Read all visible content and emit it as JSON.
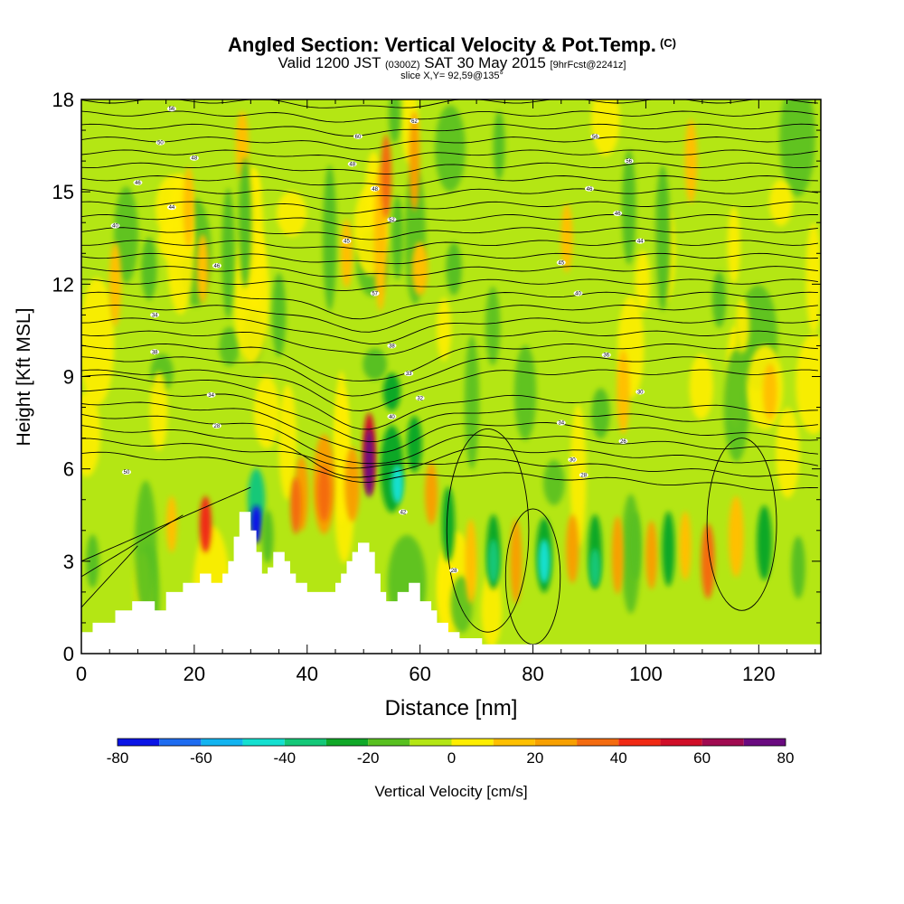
{
  "header": {
    "title": "Angled Section: Vertical Velocity & Pot.Temp.",
    "title_unit": "(C)",
    "valid_prefix": "Valid 1200 JST",
    "valid_zulu": "(0300Z)",
    "valid_date": "SAT 30 May 2015",
    "forecast": "[9hrFcst@2241z]",
    "slice": "slice X,Y= 92,59@135°"
  },
  "chart_data": {
    "type": "heatmap",
    "xlabel": "Distance [nm]",
    "ylabel": "Height [Kft MSL]",
    "xlim": [
      0,
      131
    ],
    "ylim": [
      0,
      18
    ],
    "x_ticks": [
      0,
      20,
      40,
      60,
      80,
      100,
      120
    ],
    "y_ticks": [
      0,
      3,
      6,
      9,
      12,
      15,
      18
    ],
    "colorbar": {
      "label": "Vertical Velocity [cm/s]",
      "ticks": [
        -80,
        -60,
        -40,
        -20,
        0,
        20,
        40,
        60,
        80
      ],
      "bins": [
        -80,
        -70,
        -60,
        -50,
        -40,
        -30,
        -20,
        -10,
        0,
        10,
        20,
        30,
        40,
        50,
        60,
        70,
        80
      ],
      "colors": [
        "#0a14e6",
        "#1e6cf0",
        "#12b4f0",
        "#14e0d0",
        "#14c878",
        "#10a828",
        "#58c020",
        "#b4e614",
        "#ffee00",
        "#ffc000",
        "#f7a000",
        "#f46c10",
        "#f02a14",
        "#d00e28",
        "#a00a50",
        "#6a0a80"
      ]
    },
    "background_color": "#b4e614",
    "terrain": [
      [
        0,
        0.7
      ],
      [
        2,
        0.7
      ],
      [
        2,
        1.0
      ],
      [
        6,
        1.0
      ],
      [
        6,
        1.4
      ],
      [
        9,
        1.4
      ],
      [
        9,
        1.7
      ],
      [
        13,
        1.7
      ],
      [
        13,
        1.4
      ],
      [
        15,
        1.4
      ],
      [
        15,
        2.0
      ],
      [
        18,
        2.0
      ],
      [
        18,
        2.3
      ],
      [
        21,
        2.3
      ],
      [
        21,
        2.6
      ],
      [
        23,
        2.6
      ],
      [
        23,
        2.3
      ],
      [
        25,
        2.3
      ],
      [
        25,
        2.6
      ],
      [
        26,
        2.6
      ],
      [
        26,
        3.0
      ],
      [
        27,
        3.0
      ],
      [
        27,
        3.8
      ],
      [
        28,
        3.8
      ],
      [
        28,
        4.6
      ],
      [
        30,
        4.6
      ],
      [
        30,
        4.0
      ],
      [
        31,
        4.0
      ],
      [
        31,
        3.3
      ],
      [
        32,
        3.3
      ],
      [
        32,
        2.6
      ],
      [
        33,
        2.6
      ],
      [
        33,
        2.8
      ],
      [
        34,
        2.8
      ],
      [
        34,
        3.3
      ],
      [
        36,
        3.3
      ],
      [
        36,
        3.0
      ],
      [
        37,
        3.0
      ],
      [
        37,
        2.6
      ],
      [
        38,
        2.6
      ],
      [
        38,
        2.3
      ],
      [
        40,
        2.3
      ],
      [
        40,
        2.0
      ],
      [
        45,
        2.0
      ],
      [
        45,
        2.3
      ],
      [
        46,
        2.3
      ],
      [
        46,
        2.6
      ],
      [
        47,
        2.6
      ],
      [
        47,
        3.0
      ],
      [
        48,
        3.0
      ],
      [
        48,
        3.3
      ],
      [
        49,
        3.3
      ],
      [
        49,
        3.6
      ],
      [
        51,
        3.6
      ],
      [
        51,
        3.3
      ],
      [
        52,
        3.3
      ],
      [
        52,
        2.6
      ],
      [
        53,
        2.6
      ],
      [
        53,
        2.0
      ],
      [
        54,
        2.0
      ],
      [
        54,
        1.7
      ],
      [
        56,
        1.7
      ],
      [
        56,
        2.0
      ],
      [
        58,
        2.0
      ],
      [
        58,
        2.3
      ],
      [
        60,
        2.3
      ],
      [
        60,
        1.7
      ],
      [
        62,
        1.7
      ],
      [
        62,
        1.4
      ],
      [
        63,
        1.4
      ],
      [
        63,
        1.0
      ],
      [
        65,
        1.0
      ],
      [
        65,
        0.7
      ],
      [
        67,
        0.7
      ],
      [
        67,
        0.5
      ],
      [
        71,
        0.5
      ],
      [
        71,
        0.3
      ],
      [
        131,
        0.3
      ]
    ],
    "cells": [
      {
        "x": 22,
        "y": 4.2,
        "w": 0.8,
        "h": 1.6,
        "value": 45
      },
      {
        "x": 21.5,
        "y": 12.5,
        "w": 0.8,
        "h": 2.0,
        "value": 15
      },
      {
        "x": 19,
        "y": 14.5,
        "w": 0.6,
        "h": 2.4,
        "value": 15
      },
      {
        "x": 16,
        "y": 4.2,
        "w": 0.6,
        "h": 1.6,
        "value": 15
      },
      {
        "x": 31,
        "y": 5.0,
        "w": 1.8,
        "h": 1.8,
        "value": -40
      },
      {
        "x": 31,
        "y": 4.2,
        "w": 0.8,
        "h": 1.0,
        "value": -75
      },
      {
        "x": 33,
        "y": 3.8,
        "w": 0.8,
        "h": 1.5,
        "value": -15
      },
      {
        "x": 28.5,
        "y": 16.5,
        "w": 1.0,
        "h": 2.0,
        "value": 15
      },
      {
        "x": 29,
        "y": 14,
        "w": 1.0,
        "h": 4.0,
        "value": -15
      },
      {
        "x": 43,
        "y": 5.5,
        "w": 2.6,
        "h": 3.0,
        "value": 25
      },
      {
        "x": 43,
        "y": 5.2,
        "w": 1.0,
        "h": 1.6,
        "value": 35
      },
      {
        "x": 39,
        "y": 5.2,
        "w": 1.2,
        "h": 2.2,
        "value": 20
      },
      {
        "x": 38,
        "y": 4.8,
        "w": 0.6,
        "h": 1.6,
        "value": 35
      },
      {
        "x": 48,
        "y": 5.5,
        "w": 1.4,
        "h": 2.2,
        "value": 25
      },
      {
        "x": 51,
        "y": 6.5,
        "w": 0.9,
        "h": 2.4,
        "value": 50
      },
      {
        "x": 51,
        "y": 6.2,
        "w": 0.35,
        "h": 2.0,
        "value": 75
      },
      {
        "x": 55,
        "y": 6.0,
        "w": 2.8,
        "h": 2.6,
        "value": -30
      },
      {
        "x": 55,
        "y": 8.5,
        "w": 1.8,
        "h": 1.0,
        "value": -25
      },
      {
        "x": 56,
        "y": 5.5,
        "w": 0.8,
        "h": 1.0,
        "value": -45
      },
      {
        "x": 59,
        "y": 6.8,
        "w": 1.4,
        "h": 1.6,
        "value": -25
      },
      {
        "x": 52,
        "y": 9.4,
        "w": 3.0,
        "h": 0.8,
        "value": -15
      },
      {
        "x": 62,
        "y": 5.2,
        "w": 1.0,
        "h": 1.8,
        "value": 20
      },
      {
        "x": 65,
        "y": 4.2,
        "w": 1.0,
        "h": 2.2,
        "value": -25
      },
      {
        "x": 69,
        "y": 3.0,
        "w": 0.8,
        "h": 2.5,
        "value": 15
      },
      {
        "x": 73,
        "y": 3.3,
        "w": 1.2,
        "h": 2.2,
        "value": -25
      },
      {
        "x": 73,
        "y": 3.0,
        "w": 0.6,
        "h": 1.2,
        "value": -40
      },
      {
        "x": 77,
        "y": 3.0,
        "w": 0.8,
        "h": 2.5,
        "value": 20
      },
      {
        "x": 82,
        "y": 3.2,
        "w": 1.6,
        "h": 2.2,
        "value": -25
      },
      {
        "x": 82,
        "y": 3.0,
        "w": 0.7,
        "h": 1.2,
        "value": -45
      },
      {
        "x": 87,
        "y": 3.4,
        "w": 1.0,
        "h": 2.0,
        "value": 20
      },
      {
        "x": 91,
        "y": 3.3,
        "w": 1.2,
        "h": 2.2,
        "value": -25
      },
      {
        "x": 91,
        "y": 2.8,
        "w": 0.6,
        "h": 1.0,
        "value": -40
      },
      {
        "x": 95,
        "y": 3.2,
        "w": 0.8,
        "h": 2.3,
        "value": 20
      },
      {
        "x": 98,
        "y": 3.5,
        "w": 1.0,
        "h": 2.0,
        "value": -20
      },
      {
        "x": 101,
        "y": 3.2,
        "w": 0.8,
        "h": 2.0,
        "value": 20
      },
      {
        "x": 104,
        "y": 3.4,
        "w": 1.0,
        "h": 2.2,
        "value": -25
      },
      {
        "x": 107,
        "y": 3.5,
        "w": 0.8,
        "h": 2.0,
        "value": 15
      },
      {
        "x": 111,
        "y": 3.0,
        "w": 1.1,
        "h": 2.2,
        "value": 30
      },
      {
        "x": 116,
        "y": 3.8,
        "w": 1.4,
        "h": 2.4,
        "value": 15
      },
      {
        "x": 121,
        "y": 3.6,
        "w": 1.4,
        "h": 2.2,
        "value": -25
      },
      {
        "x": 127,
        "y": 2.8,
        "w": 1.2,
        "h": 1.8,
        "value": -20
      },
      {
        "x": 97,
        "y": 14.5,
        "w": 1.2,
        "h": 3.5,
        "value": -20
      },
      {
        "x": 103,
        "y": 13.5,
        "w": 1.4,
        "h": 4.5,
        "value": -20
      },
      {
        "x": 108,
        "y": 16.0,
        "w": 0.9,
        "h": 2.5,
        "value": 15
      },
      {
        "x": 96,
        "y": 8.5,
        "w": 1.0,
        "h": 2.5,
        "value": 15
      },
      {
        "x": 92,
        "y": 7.8,
        "w": 2.0,
        "h": 1.4,
        "value": -20
      },
      {
        "x": 74,
        "y": 16.5,
        "w": 0.8,
        "h": 2.0,
        "value": -15
      },
      {
        "x": 59,
        "y": 16.0,
        "w": 0.6,
        "h": 3.0,
        "value": 20
      },
      {
        "x": 60,
        "y": 12.5,
        "w": 1.6,
        "h": 1.5,
        "value": 15
      },
      {
        "x": 66,
        "y": 12.5,
        "w": 1.5,
        "h": 1.5,
        "value": -20
      },
      {
        "x": 53,
        "y": 13.5,
        "w": 1.0,
        "h": 4.5,
        "value": 15
      },
      {
        "x": 54,
        "y": 15.5,
        "w": 0.6,
        "h": 2.5,
        "value": 35
      },
      {
        "x": 55.5,
        "y": 17.5,
        "w": 0.8,
        "h": 1.6,
        "value": -20
      },
      {
        "x": 56,
        "y": 13.5,
        "w": 0.8,
        "h": 2.5,
        "value": -15
      },
      {
        "x": 44,
        "y": 13.5,
        "w": 1.2,
        "h": 4.5,
        "value": -15
      },
      {
        "x": 47,
        "y": 13.0,
        "w": 0.8,
        "h": 2.0,
        "value": 15
      },
      {
        "x": 35,
        "y": 11.0,
        "w": 1.2,
        "h": 2.5,
        "value": -15
      },
      {
        "x": 12,
        "y": 12.5,
        "w": 1.5,
        "h": 1.8,
        "value": -15
      },
      {
        "x": 6,
        "y": 12.0,
        "w": 0.8,
        "h": 2.5,
        "value": 15
      },
      {
        "x": 26,
        "y": 13.0,
        "w": 1.0,
        "h": 4.0,
        "value": -15
      },
      {
        "x": 2,
        "y": 3.0,
        "w": 1.0,
        "h": 1.5,
        "value": -20
      },
      {
        "x": 86,
        "y": 13.5,
        "w": 0.8,
        "h": 2.0,
        "value": 15
      },
      {
        "x": 113,
        "y": 11.5,
        "w": 1.2,
        "h": 1.6,
        "value": -15
      },
      {
        "x": 122,
        "y": 8.5,
        "w": 1.2,
        "h": 1.6,
        "value": 15
      }
    ],
    "contour_labels": [
      {
        "x": 16,
        "y": 17.7,
        "text": "56"
      },
      {
        "x": 14,
        "y": 16.6,
        "text": "50"
      },
      {
        "x": 20,
        "y": 16.1,
        "text": "48"
      },
      {
        "x": 10,
        "y": 15.3,
        "text": "46"
      },
      {
        "x": 16,
        "y": 14.5,
        "text": "44"
      },
      {
        "x": 6,
        "y": 13.9,
        "text": "40"
      },
      {
        "x": 24,
        "y": 12.6,
        "text": "46"
      },
      {
        "x": 13,
        "y": 11.0,
        "text": "34"
      },
      {
        "x": 13,
        "y": 9.8,
        "text": "38"
      },
      {
        "x": 23,
        "y": 8.4,
        "text": "34"
      },
      {
        "x": 24,
        "y": 7.4,
        "text": "28"
      },
      {
        "x": 8,
        "y": 5.9,
        "text": "50"
      },
      {
        "x": 59,
        "y": 17.3,
        "text": "62"
      },
      {
        "x": 49,
        "y": 16.8,
        "text": "60"
      },
      {
        "x": 48,
        "y": 15.9,
        "text": "48"
      },
      {
        "x": 52,
        "y": 15.1,
        "text": "48"
      },
      {
        "x": 55,
        "y": 14.1,
        "text": "52"
      },
      {
        "x": 47,
        "y": 13.4,
        "text": "45"
      },
      {
        "x": 52,
        "y": 11.7,
        "text": "57"
      },
      {
        "x": 55,
        "y": 10.0,
        "text": "38"
      },
      {
        "x": 58,
        "y": 9.1,
        "text": "33"
      },
      {
        "x": 60,
        "y": 8.3,
        "text": "32"
      },
      {
        "x": 55,
        "y": 7.7,
        "text": "40"
      },
      {
        "x": 57,
        "y": 4.6,
        "text": "42"
      },
      {
        "x": 66,
        "y": 2.7,
        "text": "28"
      },
      {
        "x": 91,
        "y": 16.8,
        "text": "56"
      },
      {
        "x": 97,
        "y": 16.0,
        "text": "56"
      },
      {
        "x": 90,
        "y": 15.1,
        "text": "46"
      },
      {
        "x": 95,
        "y": 14.3,
        "text": "46"
      },
      {
        "x": 99,
        "y": 13.4,
        "text": "44"
      },
      {
        "x": 85,
        "y": 12.7,
        "text": "45"
      },
      {
        "x": 88,
        "y": 11.7,
        "text": "40"
      },
      {
        "x": 93,
        "y": 9.7,
        "text": "36"
      },
      {
        "x": 99,
        "y": 8.5,
        "text": "30"
      },
      {
        "x": 85,
        "y": 7.5,
        "text": "34"
      },
      {
        "x": 96,
        "y": 6.9,
        "text": "26"
      },
      {
        "x": 87,
        "y": 6.3,
        "text": "30"
      },
      {
        "x": 89,
        "y": 5.8,
        "text": "28"
      }
    ]
  }
}
